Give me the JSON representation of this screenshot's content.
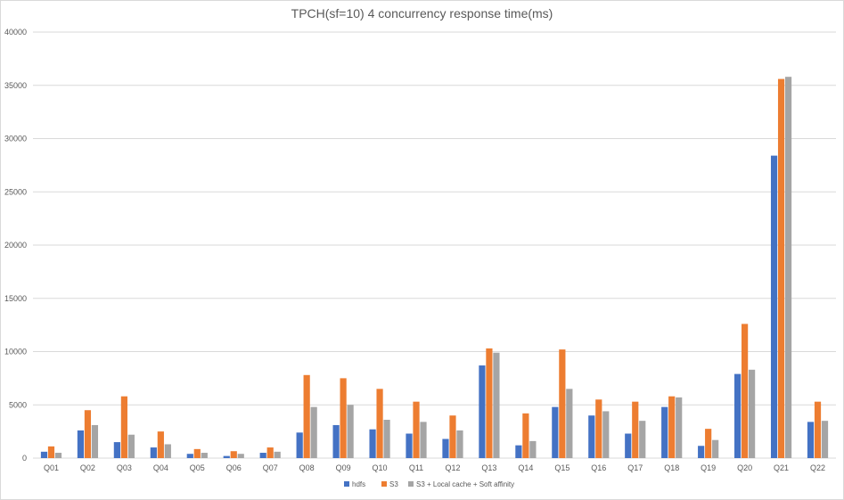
{
  "chart_data": {
    "type": "bar",
    "title": "TPCH(sf=10) 4 concurrency response time(ms)",
    "xlabel": "",
    "ylabel": "",
    "ylim": [
      0,
      40000
    ],
    "yticks": [
      0,
      5000,
      10000,
      15000,
      20000,
      25000,
      30000,
      35000,
      40000
    ],
    "grid": "horizontal",
    "legend_position": "bottom",
    "categories": [
      "Q01",
      "Q02",
      "Q03",
      "Q04",
      "Q05",
      "Q06",
      "Q07",
      "Q08",
      "Q09",
      "Q10",
      "Q11",
      "Q12",
      "Q13",
      "Q14",
      "Q15",
      "Q16",
      "Q17",
      "Q18",
      "Q19",
      "Q20",
      "Q21",
      "Q22"
    ],
    "series": [
      {
        "name": "hdfs",
        "color": "#4472c4",
        "values": [
          600,
          2600,
          1500,
          1000,
          400,
          200,
          500,
          2400,
          3100,
          2700,
          2300,
          1800,
          8700,
          1200,
          4800,
          4000,
          2300,
          4800,
          1150,
          7900,
          28400,
          3400
        ]
      },
      {
        "name": "S3",
        "color": "#ed7d31",
        "values": [
          1100,
          4500,
          5800,
          2500,
          850,
          650,
          1000,
          7800,
          7500,
          6500,
          5300,
          4000,
          10300,
          4200,
          10200,
          5500,
          5300,
          5800,
          2750,
          12600,
          35600,
          5300
        ]
      },
      {
        "name": "S3 + Local cache + Soft affinity",
        "color": "#a5a5a5",
        "values": [
          500,
          3100,
          2200,
          1300,
          500,
          400,
          600,
          4800,
          5000,
          3600,
          3400,
          2600,
          9900,
          1600,
          6500,
          4400,
          3500,
          5700,
          1700,
          8300,
          35800,
          3500
        ]
      }
    ]
  }
}
